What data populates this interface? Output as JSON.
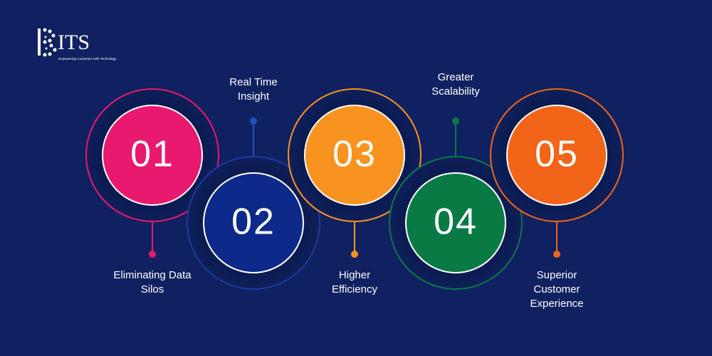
{
  "logo": {
    "text": "ITS",
    "tagline": "Empowering Customers with Technology"
  },
  "steps": [
    {
      "number": "01",
      "label": [
        "Eliminating Data",
        "Silos"
      ],
      "color": "#e8196e",
      "position": "top"
    },
    {
      "number": "02",
      "label": [
        "Real Time",
        "Insight"
      ],
      "color": "#0d2a8a",
      "position": "bottom"
    },
    {
      "number": "03",
      "label": [
        "Higher",
        "Efficiency"
      ],
      "color": "#f7931e",
      "position": "top"
    },
    {
      "number": "04",
      "label": [
        "Greater",
        "Scalability"
      ],
      "color": "#0a7a45",
      "position": "bottom"
    },
    {
      "number": "05",
      "label": [
        "Superior",
        "Customer",
        "Experience"
      ],
      "color": "#f26418",
      "position": "top"
    }
  ]
}
